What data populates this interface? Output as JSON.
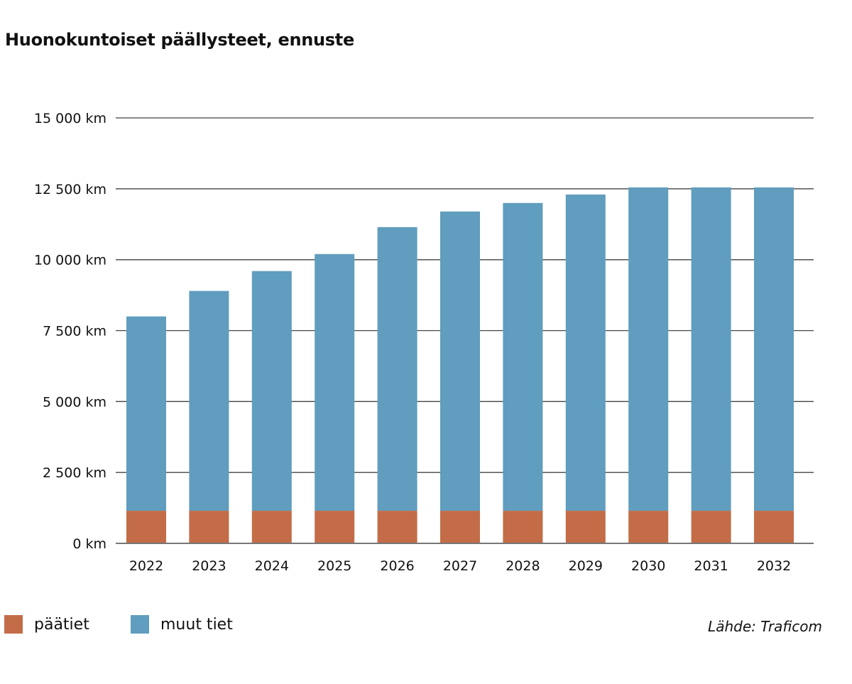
{
  "title": "Huonokuntoiset päällysteet, ennuste",
  "source": "Lähde: Traficom",
  "colors": {
    "paatiet": "#c36c47",
    "muut_tiet": "#609dbe",
    "grid": "#444444",
    "axis": "#777777"
  },
  "legend": [
    {
      "label": "päätiet",
      "color": "#c36c47"
    },
    {
      "label": "muut tiet",
      "color": "#609dbe"
    }
  ],
  "chart_data": {
    "type": "bar",
    "stacked": true,
    "title": "Huonokuntoiset päällysteet, ennuste",
    "xlabel": "",
    "ylabel": "",
    "categories": [
      "2022",
      "2023",
      "2024",
      "2025",
      "2026",
      "2027",
      "2028",
      "2029",
      "2030",
      "2031",
      "2032"
    ],
    "series": [
      {
        "name": "päätiet",
        "color": "#c36c47",
        "values": [
          1150,
          1150,
          1150,
          1150,
          1150,
          1150,
          1150,
          1150,
          1150,
          1150,
          1150
        ]
      },
      {
        "name": "muut tiet",
        "color": "#609dbe",
        "values": [
          6850,
          7750,
          8450,
          9050,
          10000,
          10550,
          10850,
          11150,
          11400,
          11400,
          11400
        ]
      }
    ],
    "ylim": [
      0,
      15000
    ],
    "yticks": [
      0,
      2500,
      5000,
      7500,
      10000,
      12500,
      15000
    ],
    "ytick_labels": [
      "0 km",
      "2 500 km",
      "5 000 km",
      "7 500 km",
      "10 000 km",
      "12 500 km",
      "15 000 km"
    ],
    "grid": true,
    "legend_position": "bottom-left",
    "annotation": "Lähde: Traficom"
  }
}
